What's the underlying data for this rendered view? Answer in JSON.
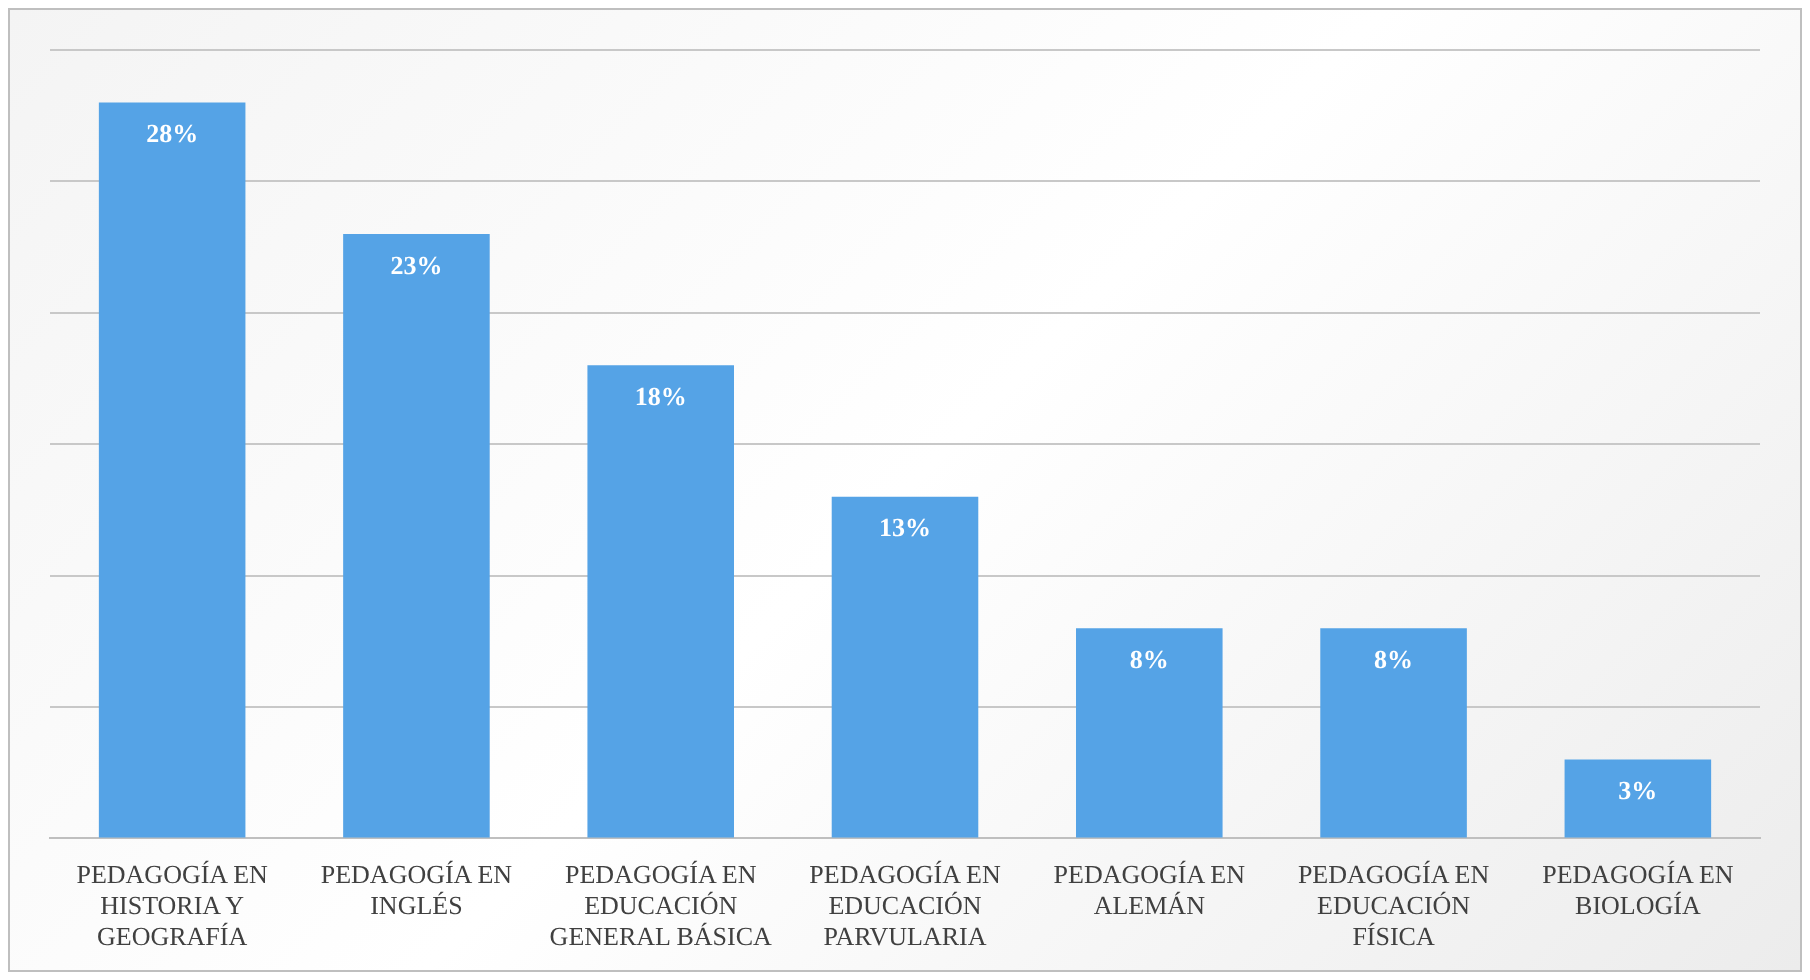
{
  "chart_data": {
    "type": "bar",
    "categories": [
      "PEDAGOGÍA EN HISTORIA Y GEOGRAFÍA",
      "PEDAGOGÍA EN INGLÉS",
      "PEDAGOGÍA EN EDUCACIÓN GENERAL BÁSICA",
      "PEDAGOGÍA EN EDUCACIÓN PARVULARIA",
      "PEDAGOGÍA EN ALEMÁN",
      "PEDAGOGÍA EN EDUCACIÓN FÍSICA",
      "PEDAGOGÍA EN BIOLOGÍA"
    ],
    "values": [
      28,
      23,
      18,
      13,
      8,
      8,
      3
    ],
    "value_labels": [
      "28%",
      "23%",
      "18%",
      "13%",
      "8%",
      "8%",
      "3%"
    ],
    "color": "#55a3e6",
    "ylim": [
      0,
      30
    ],
    "yticks": [
      {
        "value": 0,
        "label": null
      },
      {
        "value": 5,
        "label": null
      },
      {
        "value": 10,
        "label": null
      },
      {
        "value": 15,
        "label": null
      },
      {
        "value": 20,
        "label": null
      },
      {
        "value": 25,
        "label": null
      },
      {
        "value": 30,
        "label": null
      }
    ],
    "grid": "y",
    "tick_labels": "x",
    "legend": false
  }
}
